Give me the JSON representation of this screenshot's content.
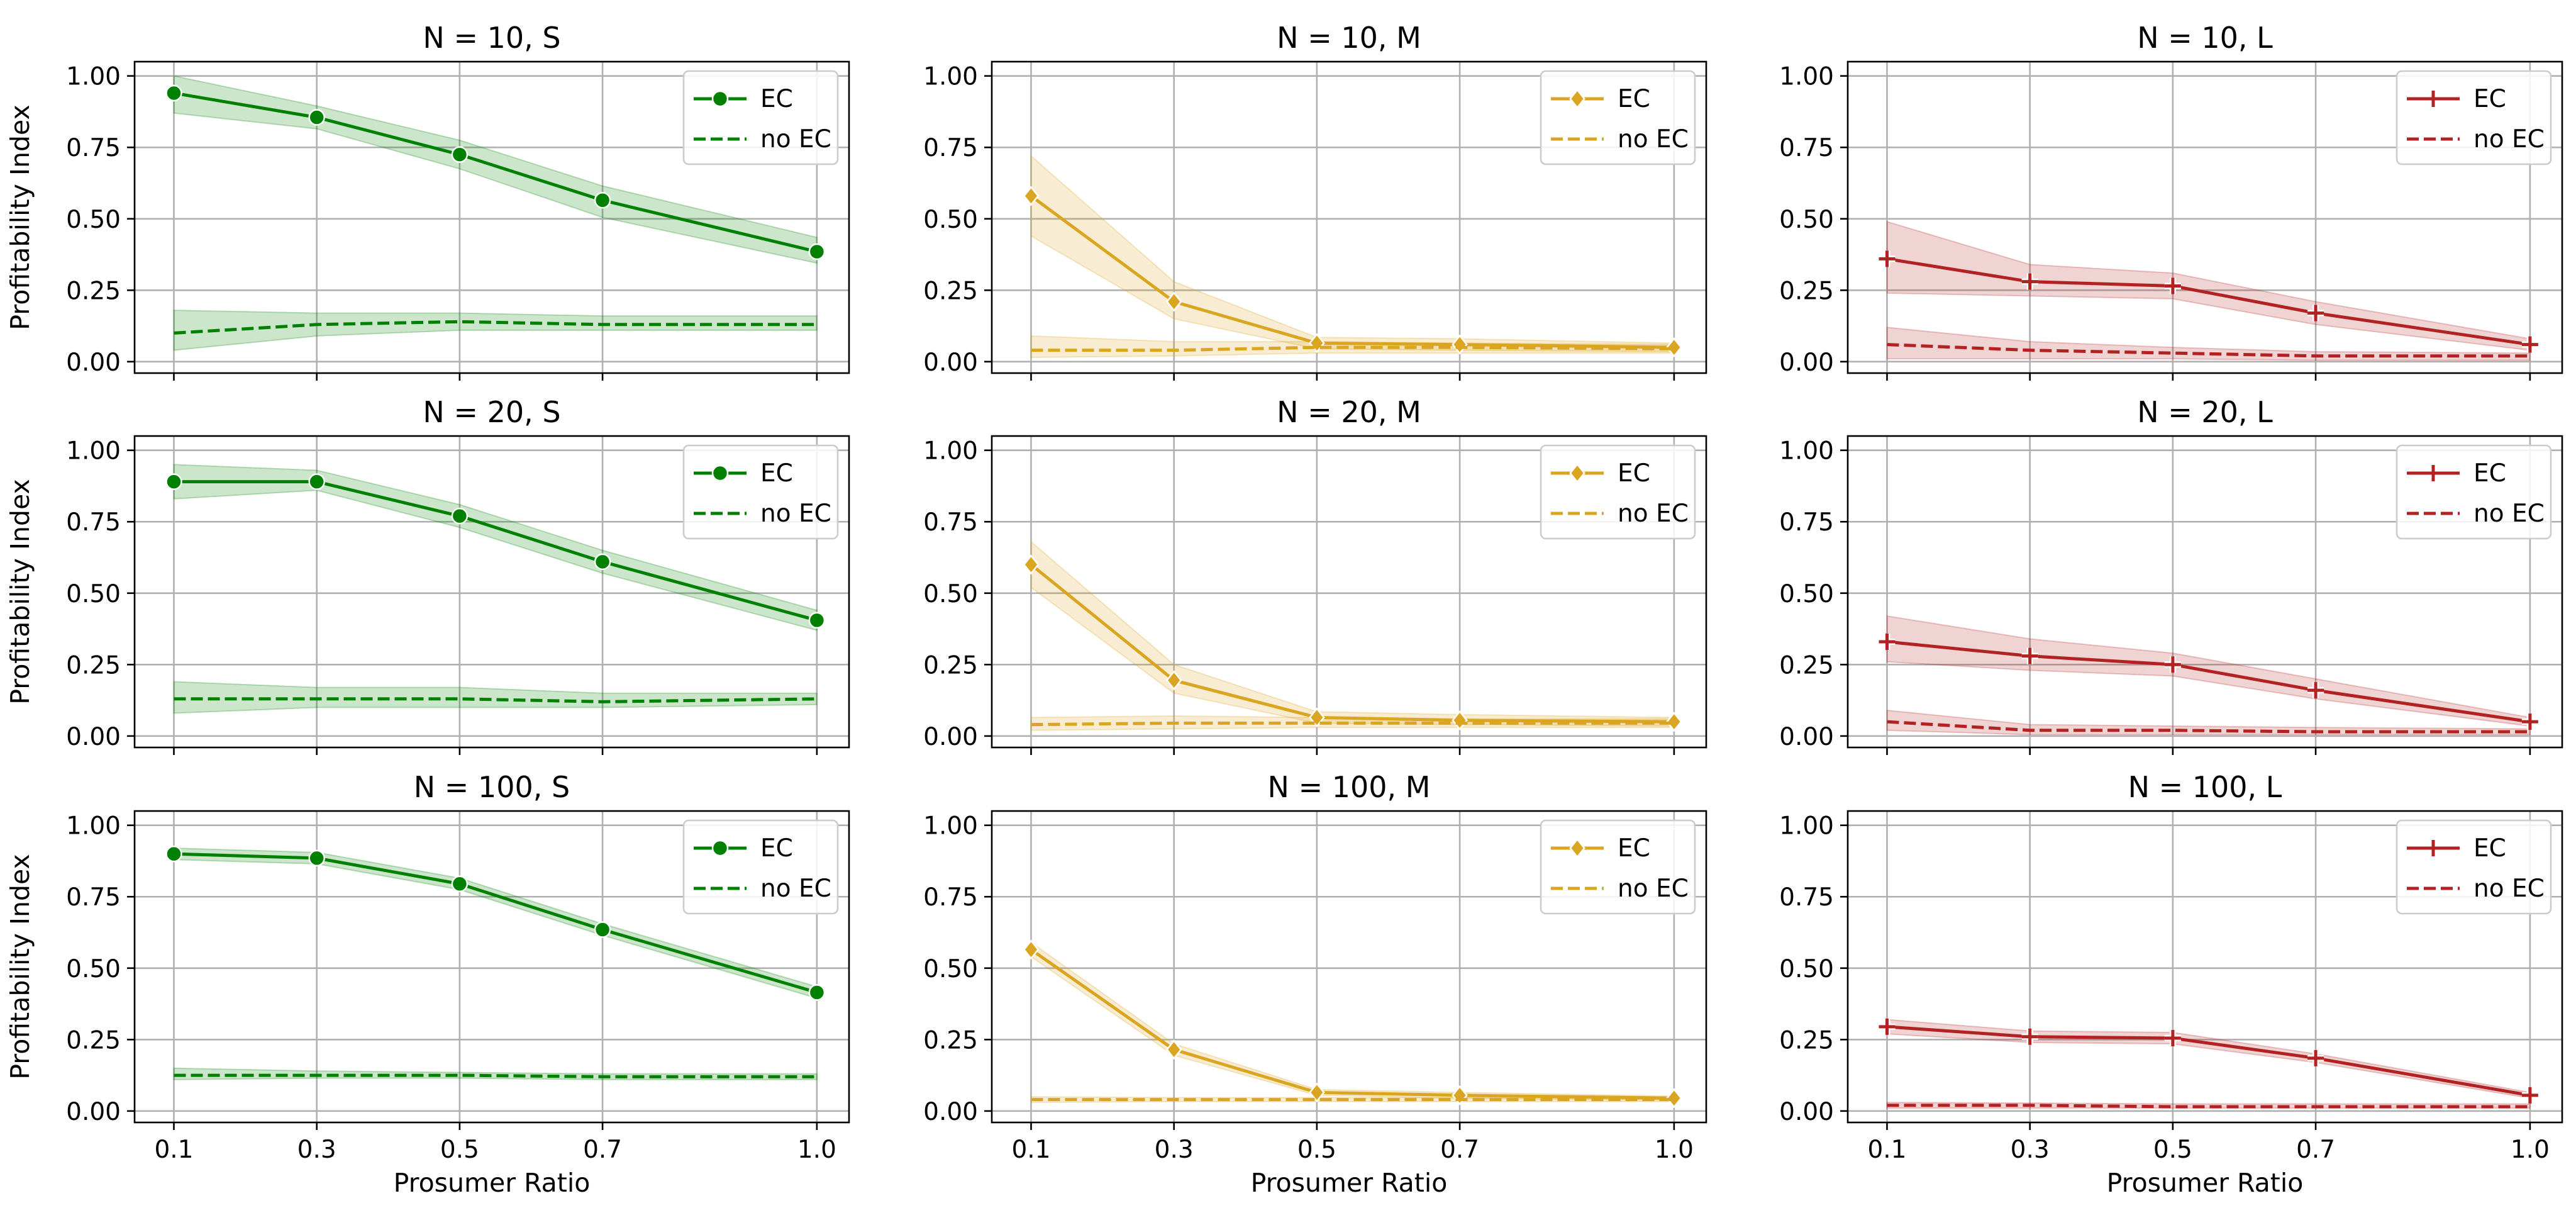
{
  "figure": {
    "shared_ylabel": "Profitability Index",
    "shared_xlabel": "Prosumer Ratio"
  },
  "colors": {
    "S": "#008000",
    "M": "#daa520",
    "L": "#b22222",
    "grid": "#b0b0b0",
    "axes": "#000000"
  },
  "chart_data": [
    {
      "type": "line",
      "title": "N = 10, S",
      "xlabel": "",
      "ylabel": "Profitability Index",
      "x": [
        0.1,
        0.3,
        0.5,
        0.7,
        1.0
      ],
      "xticks": [
        "0.1",
        "0.3",
        "0.5",
        "0.7",
        "1.0"
      ],
      "yticks": [
        "0.00",
        "0.25",
        "0.50",
        "0.75",
        "1.00"
      ],
      "ylim": [
        -0.04,
        1.05
      ],
      "xlim": [
        0.045,
        1.045
      ],
      "grid": true,
      "legend": "upper right",
      "color": "#008000",
      "marker": "circle",
      "series": [
        {
          "name": "EC",
          "style": "solid",
          "values": [
            0.94,
            0.855,
            0.725,
            0.565,
            0.385
          ],
          "band_low": [
            0.87,
            0.815,
            0.675,
            0.505,
            0.345
          ],
          "band_high": [
            1.0,
            0.895,
            0.775,
            0.615,
            0.435
          ]
        },
        {
          "name": "no EC",
          "style": "dashed",
          "values": [
            0.1,
            0.13,
            0.14,
            0.13,
            0.13
          ],
          "band_low": [
            0.04,
            0.09,
            0.11,
            0.11,
            0.11
          ],
          "band_high": [
            0.18,
            0.17,
            0.17,
            0.16,
            0.16
          ]
        }
      ]
    },
    {
      "type": "line",
      "title": "N = 10, M",
      "xlabel": "",
      "ylabel": "",
      "x": [
        0.1,
        0.3,
        0.5,
        0.7,
        1.0
      ],
      "xticks": [
        "0.1",
        "0.3",
        "0.5",
        "0.7",
        "1.0"
      ],
      "yticks": [
        "0.00",
        "0.25",
        "0.50",
        "0.75",
        "1.00"
      ],
      "ylim": [
        -0.04,
        1.05
      ],
      "xlim": [
        0.045,
        1.045
      ],
      "grid": true,
      "legend": "upper right",
      "color": "#daa520",
      "marker": "diamond",
      "series": [
        {
          "name": "EC",
          "style": "solid",
          "values": [
            0.58,
            0.21,
            0.065,
            0.06,
            0.05
          ],
          "band_low": [
            0.44,
            0.15,
            0.045,
            0.04,
            0.035
          ],
          "band_high": [
            0.72,
            0.28,
            0.085,
            0.08,
            0.065
          ]
        },
        {
          "name": "no EC",
          "style": "dashed",
          "values": [
            0.04,
            0.04,
            0.05,
            0.05,
            0.045
          ],
          "band_low": [
            0.015,
            0.02,
            0.03,
            0.03,
            0.03
          ],
          "band_high": [
            0.09,
            0.07,
            0.07,
            0.065,
            0.06
          ]
        }
      ]
    },
    {
      "type": "line",
      "title": "N = 10, L",
      "xlabel": "",
      "ylabel": "",
      "x": [
        0.1,
        0.3,
        0.5,
        0.7,
        1.0
      ],
      "xticks": [
        "0.1",
        "0.3",
        "0.5",
        "0.7",
        "1.0"
      ],
      "yticks": [
        "0.00",
        "0.25",
        "0.50",
        "0.75",
        "1.00"
      ],
      "ylim": [
        -0.04,
        1.05
      ],
      "xlim": [
        0.045,
        1.045
      ],
      "grid": true,
      "legend": "upper right",
      "color": "#b22222",
      "marker": "plus",
      "series": [
        {
          "name": "EC",
          "style": "solid",
          "values": [
            0.36,
            0.28,
            0.265,
            0.17,
            0.06
          ],
          "band_low": [
            0.24,
            0.23,
            0.22,
            0.13,
            0.04
          ],
          "band_high": [
            0.49,
            0.34,
            0.31,
            0.21,
            0.08
          ]
        },
        {
          "name": "no EC",
          "style": "dashed",
          "values": [
            0.06,
            0.04,
            0.03,
            0.02,
            0.02
          ],
          "band_low": [
            0.01,
            0.01,
            0.01,
            0.005,
            0.005
          ],
          "band_high": [
            0.12,
            0.07,
            0.05,
            0.035,
            0.03
          ]
        }
      ]
    },
    {
      "type": "line",
      "title": "N = 20, S",
      "xlabel": "",
      "ylabel": "Profitability Index",
      "x": [
        0.1,
        0.3,
        0.5,
        0.7,
        1.0
      ],
      "xticks": [
        "0.1",
        "0.3",
        "0.5",
        "0.7",
        "1.0"
      ],
      "yticks": [
        "0.00",
        "0.25",
        "0.50",
        "0.75",
        "1.00"
      ],
      "ylim": [
        -0.04,
        1.05
      ],
      "xlim": [
        0.045,
        1.045
      ],
      "grid": true,
      "legend": "upper right",
      "color": "#008000",
      "marker": "circle",
      "series": [
        {
          "name": "EC",
          "style": "solid",
          "values": [
            0.89,
            0.89,
            0.77,
            0.61,
            0.405
          ],
          "band_low": [
            0.83,
            0.86,
            0.73,
            0.57,
            0.37
          ],
          "band_high": [
            0.95,
            0.93,
            0.81,
            0.65,
            0.44
          ]
        },
        {
          "name": "no EC",
          "style": "dashed",
          "values": [
            0.13,
            0.13,
            0.13,
            0.12,
            0.13
          ],
          "band_low": [
            0.08,
            0.1,
            0.1,
            0.1,
            0.11
          ],
          "band_high": [
            0.19,
            0.17,
            0.17,
            0.15,
            0.15
          ]
        }
      ]
    },
    {
      "type": "line",
      "title": "N = 20, M",
      "xlabel": "",
      "ylabel": "",
      "x": [
        0.1,
        0.3,
        0.5,
        0.7,
        1.0
      ],
      "xticks": [
        "0.1",
        "0.3",
        "0.5",
        "0.7",
        "1.0"
      ],
      "yticks": [
        "0.00",
        "0.25",
        "0.50",
        "0.75",
        "1.00"
      ],
      "ylim": [
        -0.04,
        1.05
      ],
      "xlim": [
        0.045,
        1.045
      ],
      "grid": true,
      "legend": "upper right",
      "color": "#daa520",
      "marker": "diamond",
      "series": [
        {
          "name": "EC",
          "style": "solid",
          "values": [
            0.6,
            0.195,
            0.065,
            0.055,
            0.05
          ],
          "band_low": [
            0.52,
            0.15,
            0.045,
            0.04,
            0.035
          ],
          "band_high": [
            0.68,
            0.25,
            0.085,
            0.075,
            0.065
          ]
        },
        {
          "name": "no EC",
          "style": "dashed",
          "values": [
            0.04,
            0.045,
            0.045,
            0.045,
            0.045
          ],
          "band_low": [
            0.02,
            0.025,
            0.03,
            0.03,
            0.03
          ],
          "band_high": [
            0.065,
            0.07,
            0.065,
            0.06,
            0.06
          ]
        }
      ]
    },
    {
      "type": "line",
      "title": "N = 20, L",
      "xlabel": "",
      "ylabel": "",
      "x": [
        0.1,
        0.3,
        0.5,
        0.7,
        1.0
      ],
      "xticks": [
        "0.1",
        "0.3",
        "0.5",
        "0.7",
        "1.0"
      ],
      "yticks": [
        "0.00",
        "0.25",
        "0.50",
        "0.75",
        "1.00"
      ],
      "ylim": [
        -0.04,
        1.05
      ],
      "xlim": [
        0.045,
        1.045
      ],
      "grid": true,
      "legend": "upper right",
      "color": "#b22222",
      "marker": "plus",
      "series": [
        {
          "name": "EC",
          "style": "solid",
          "values": [
            0.33,
            0.28,
            0.25,
            0.16,
            0.05
          ],
          "band_low": [
            0.26,
            0.23,
            0.21,
            0.13,
            0.035
          ],
          "band_high": [
            0.42,
            0.34,
            0.29,
            0.2,
            0.065
          ]
        },
        {
          "name": "no EC",
          "style": "dashed",
          "values": [
            0.05,
            0.02,
            0.02,
            0.015,
            0.015
          ],
          "band_low": [
            0.02,
            0.005,
            0.005,
            0.005,
            0.005
          ],
          "band_high": [
            0.09,
            0.04,
            0.035,
            0.03,
            0.025
          ]
        }
      ]
    },
    {
      "type": "line",
      "title": "N = 100, S",
      "xlabel": "Prosumer Ratio",
      "ylabel": "Profitability Index",
      "x": [
        0.1,
        0.3,
        0.5,
        0.7,
        1.0
      ],
      "xticks": [
        "0.1",
        "0.3",
        "0.5",
        "0.7",
        "1.0"
      ],
      "yticks": [
        "0.00",
        "0.25",
        "0.50",
        "0.75",
        "1.00"
      ],
      "ylim": [
        -0.04,
        1.05
      ],
      "xlim": [
        0.045,
        1.045
      ],
      "grid": true,
      "legend": "upper right",
      "color": "#008000",
      "marker": "circle",
      "series": [
        {
          "name": "EC",
          "style": "solid",
          "values": [
            0.9,
            0.885,
            0.795,
            0.635,
            0.415
          ],
          "band_low": [
            0.88,
            0.865,
            0.775,
            0.615,
            0.395
          ],
          "band_high": [
            0.92,
            0.905,
            0.815,
            0.655,
            0.435
          ]
        },
        {
          "name": "no EC",
          "style": "dashed",
          "values": [
            0.125,
            0.125,
            0.125,
            0.12,
            0.12
          ],
          "band_low": [
            0.11,
            0.115,
            0.115,
            0.11,
            0.11
          ],
          "band_high": [
            0.15,
            0.14,
            0.135,
            0.13,
            0.13
          ]
        }
      ]
    },
    {
      "type": "line",
      "title": "N = 100, M",
      "xlabel": "Prosumer Ratio",
      "ylabel": "",
      "x": [
        0.1,
        0.3,
        0.5,
        0.7,
        1.0
      ],
      "xticks": [
        "0.1",
        "0.3",
        "0.5",
        "0.7",
        "1.0"
      ],
      "yticks": [
        "0.00",
        "0.25",
        "0.50",
        "0.75",
        "1.00"
      ],
      "ylim": [
        -0.04,
        1.05
      ],
      "xlim": [
        0.045,
        1.045
      ],
      "grid": true,
      "legend": "upper right",
      "color": "#daa520",
      "marker": "diamond",
      "series": [
        {
          "name": "EC",
          "style": "solid",
          "values": [
            0.565,
            0.215,
            0.065,
            0.055,
            0.045
          ],
          "band_low": [
            0.54,
            0.195,
            0.055,
            0.045,
            0.038
          ],
          "band_high": [
            0.59,
            0.235,
            0.075,
            0.065,
            0.052
          ]
        },
        {
          "name": "no EC",
          "style": "dashed",
          "values": [
            0.04,
            0.04,
            0.04,
            0.04,
            0.04
          ],
          "band_low": [
            0.03,
            0.033,
            0.033,
            0.033,
            0.033
          ],
          "band_high": [
            0.05,
            0.047,
            0.047,
            0.047,
            0.047
          ]
        }
      ]
    },
    {
      "type": "line",
      "title": "N = 100, L",
      "xlabel": "Prosumer Ratio",
      "ylabel": "",
      "x": [
        0.1,
        0.3,
        0.5,
        0.7,
        1.0
      ],
      "xticks": [
        "0.1",
        "0.3",
        "0.5",
        "0.7",
        "1.0"
      ],
      "yticks": [
        "0.00",
        "0.25",
        "0.50",
        "0.75",
        "1.00"
      ],
      "ylim": [
        -0.04,
        1.05
      ],
      "xlim": [
        0.045,
        1.045
      ],
      "grid": true,
      "legend": "upper right",
      "color": "#b22222",
      "marker": "plus",
      "series": [
        {
          "name": "EC",
          "style": "solid",
          "values": [
            0.295,
            0.26,
            0.255,
            0.185,
            0.055
          ],
          "band_low": [
            0.27,
            0.24,
            0.235,
            0.17,
            0.045
          ],
          "band_high": [
            0.32,
            0.28,
            0.275,
            0.2,
            0.065
          ]
        },
        {
          "name": "no EC",
          "style": "dashed",
          "values": [
            0.02,
            0.02,
            0.015,
            0.015,
            0.015
          ],
          "band_low": [
            0.01,
            0.01,
            0.01,
            0.01,
            0.01
          ],
          "band_high": [
            0.03,
            0.028,
            0.025,
            0.025,
            0.025
          ]
        }
      ]
    }
  ]
}
